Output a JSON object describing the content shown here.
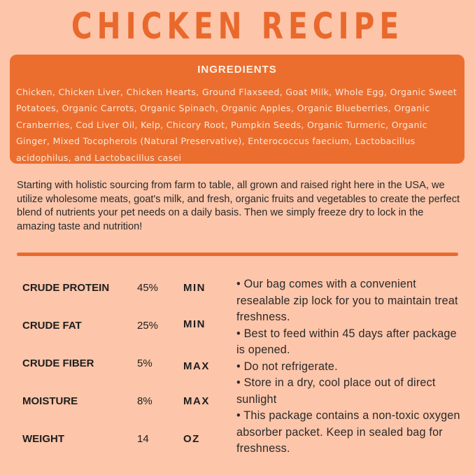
{
  "title": "CHICKEN RECIPE",
  "ingredients": {
    "heading": "INGREDIENTS",
    "text": "Chicken, Chicken Liver, Chicken Hearts, Ground Flaxseed, Goat Milk, Whole Egg, Organic Sweet Potatoes, Organic Carrots, Organic Spinach, Organic Apples, Organic Blueberries, Organic Cranberries, Cod Liver Oil, Kelp, Chicory Root, Pumpkin Seeds, Organic Turmeric, Organic Ginger, Mixed Tocopherols (Natural Preservative), Enterococcus faecium, Lactobacillus acidophilus, and Lactobacillus casei"
  },
  "intro": "Starting with holistic sourcing from farm to table, all grown and raised right here in the USA, we utilize wholesome meats, goat's milk, and fresh, organic fruits and vegetables to create the perfect blend of nutrients your pet needs on a daily basis. Then we simply freeze dry to lock in the amazing taste and nutrition!",
  "analysis": [
    {
      "name": "CRUDE PROTEIN",
      "value": "45%",
      "qualifier": "MIN"
    },
    {
      "name": "CRUDE FAT",
      "value": "25%",
      "qualifier": "MIN"
    },
    {
      "name": "CRUDE FIBER",
      "value": "5%",
      "qualifier": "MAX"
    },
    {
      "name": "MOISTURE",
      "value": "8%",
      "qualifier": "MAX"
    },
    {
      "name": "WEIGHT",
      "value": "14",
      "qualifier": "OZ"
    }
  ],
  "notes": [
    "• Our bag comes with a convenient resealable zip lock for you to maintain treat freshness.",
    "• Best to feed within 45 days after package is opened.",
    "• Do not refrigerate.",
    "• Store in a dry, cool place out of direct sunlight",
    "• This package contains a non-toxic oxygen absorber packet. Keep in sealed bag for freshness."
  ],
  "colors": {
    "background": "#fdc5a9",
    "accent": "#ec6e2e"
  }
}
